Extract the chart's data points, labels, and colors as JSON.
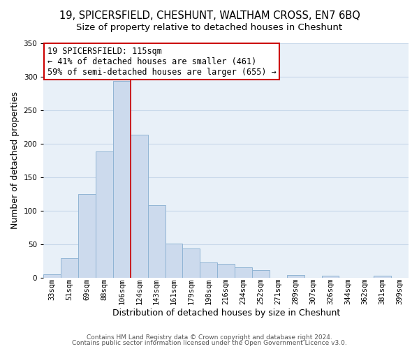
{
  "title": "19, SPICERSFIELD, CHESHUNT, WALTHAM CROSS, EN7 6BQ",
  "subtitle": "Size of property relative to detached houses in Cheshunt",
  "xlabel": "Distribution of detached houses by size in Cheshunt",
  "ylabel": "Number of detached properties",
  "footer_line1": "Contains HM Land Registry data © Crown copyright and database right 2024.",
  "footer_line2": "Contains public sector information licensed under the Open Government Licence v3.0.",
  "bin_labels": [
    "33sqm",
    "51sqm",
    "69sqm",
    "88sqm",
    "106sqm",
    "124sqm",
    "143sqm",
    "161sqm",
    "179sqm",
    "198sqm",
    "216sqm",
    "234sqm",
    "252sqm",
    "271sqm",
    "289sqm",
    "307sqm",
    "326sqm",
    "344sqm",
    "362sqm",
    "381sqm",
    "399sqm"
  ],
  "bar_heights": [
    5,
    29,
    124,
    188,
    293,
    213,
    108,
    51,
    43,
    22,
    20,
    15,
    11,
    0,
    4,
    0,
    3,
    0,
    0,
    3
  ],
  "bar_color": "#ccdaed",
  "bar_edge_color": "#90b4d4",
  "grid_color": "#c8d8ea",
  "plot_bg_color": "#e8f0f8",
  "fig_bg_color": "#ffffff",
  "annotation_text": "19 SPICERSFIELD: 115sqm\n← 41% of detached houses are smaller (461)\n59% of semi-detached houses are larger (655) →",
  "annotation_box_color": "white",
  "annotation_box_edge_color": "#cc0000",
  "red_line_color": "#cc0000",
  "ylim": [
    0,
    350
  ],
  "title_fontsize": 10.5,
  "subtitle_fontsize": 9.5,
  "axis_label_fontsize": 9,
  "tick_fontsize": 7.5,
  "annotation_fontsize": 8.5,
  "footer_fontsize": 6.5
}
